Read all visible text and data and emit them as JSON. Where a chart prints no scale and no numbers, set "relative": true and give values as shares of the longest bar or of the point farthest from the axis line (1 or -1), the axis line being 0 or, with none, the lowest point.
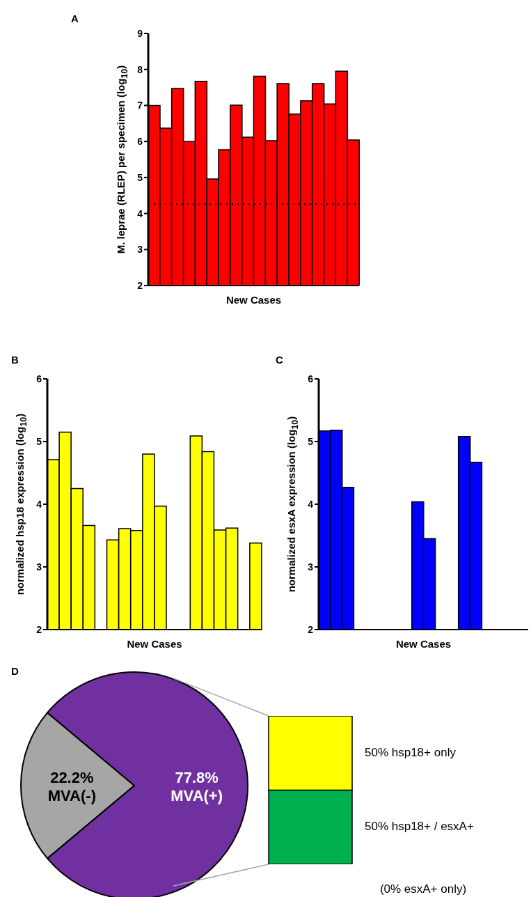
{
  "chart_data": [
    {
      "type": "bar",
      "title": "A",
      "xlabel": "New Cases",
      "ylabel": "M. leprae (RLEP) per specimen (log$_{10}$)",
      "categories": [
        null,
        null,
        null,
        null,
        null,
        null,
        null,
        null,
        null,
        null,
        null,
        null,
        null,
        null,
        null,
        null,
        null,
        null
      ],
      "values": [
        7.0,
        6.37,
        7.47,
        6.0,
        7.67,
        4.96,
        5.77,
        7.01,
        6.12,
        7.81,
        6.02,
        7.61,
        6.76,
        7.13,
        7.61,
        7.04,
        7.95,
        6.04
      ],
      "color": "#ff0000",
      "ylim": [
        2,
        9
      ],
      "yticks": [
        2,
        3,
        4,
        5,
        6,
        7,
        8,
        9
      ],
      "tick_labels": "y",
      "ref_lines": [
        {
          "axis": "y",
          "value": 4.26,
          "color": "#000000",
          "line_style": "dotted"
        }
      ]
    },
    {
      "type": "bar",
      "title": "B",
      "xlabel": "New Cases",
      "ylabel": "normalized hsp18 expression (log$_{10}$)",
      "categories": [
        null,
        null,
        null,
        null,
        null,
        null,
        null,
        null,
        null,
        null,
        null,
        null,
        null,
        null,
        null,
        null,
        null,
        null
      ],
      "values": [
        4.71,
        5.15,
        4.25,
        3.66,
        null,
        3.43,
        3.61,
        3.58,
        4.8,
        3.97,
        null,
        null,
        5.09,
        4.84,
        3.59,
        3.62,
        null,
        3.38
      ],
      "color": "#ffff00",
      "ylim": [
        2,
        6
      ],
      "yticks": [
        2,
        3,
        4,
        5,
        6
      ],
      "tick_labels": "y"
    },
    {
      "type": "bar",
      "title": "C",
      "xlabel": "New Cases",
      "ylabel": "normalized esxA expression (log$_{10}$)",
      "categories": [
        null,
        null,
        null,
        null,
        null,
        null,
        null,
        null,
        null,
        null,
        null,
        null,
        null,
        null,
        null,
        null,
        null,
        null
      ],
      "values": [
        5.17,
        5.18,
        4.27,
        null,
        null,
        null,
        null,
        null,
        4.04,
        3.45,
        null,
        null,
        5.08,
        4.67,
        null,
        null,
        null,
        null
      ],
      "color": "#0000ff",
      "ylim": [
        2,
        6
      ],
      "yticks": [
        2,
        3,
        4,
        5,
        6
      ],
      "tick_labels": "y"
    },
    {
      "type": "pie",
      "title": "D",
      "categories": [
        "MVA(-)",
        "MVA(+)"
      ],
      "values": [
        22.2,
        77.8
      ],
      "value_labels": [
        "22.2%",
        "77.8%"
      ],
      "colors": [
        "#a6a6a6",
        "#7030a0"
      ]
    },
    {
      "type": "bar",
      "stacked": true,
      "relative": true,
      "categories": [
        null
      ],
      "series": [
        {
          "name": "50% hsp18+ / esxA+",
          "color": "#00b050",
          "values": [
            0.5
          ]
        },
        {
          "name": "50% hsp18+ only",
          "color": "#ffff00",
          "values": [
            0.5
          ]
        }
      ],
      "annotations": [
        "(0% esxA+ only)"
      ]
    }
  ]
}
